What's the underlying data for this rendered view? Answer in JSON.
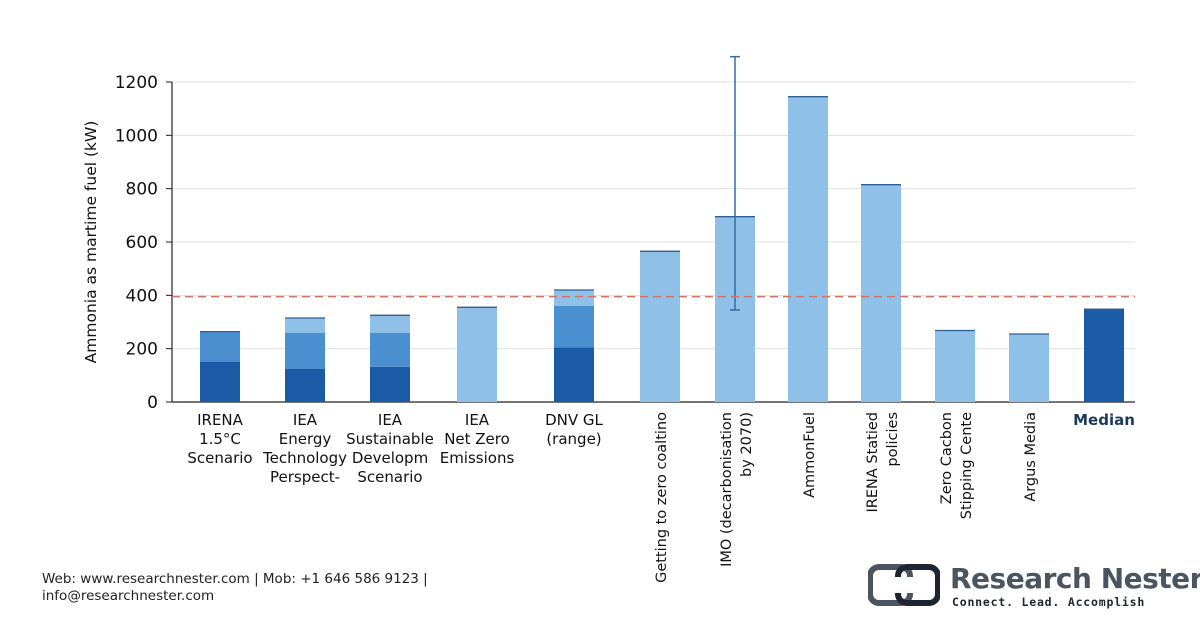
{
  "chart_data": {
    "type": "bar",
    "ylabel": "Ammonia as martime fuel (kW)",
    "ylim": [
      0,
      1200
    ],
    "yticks": [
      0,
      200,
      400,
      600,
      800,
      1000,
      1200
    ],
    "grid": true,
    "reference_line": 395,
    "categories": [
      {
        "label": [
          "IRENA",
          "1.5°C",
          "Scenario"
        ],
        "rotated": false
      },
      {
        "label": [
          "IEA",
          "Energy",
          "Technology",
          "Perspect-"
        ],
        "rotated": false
      },
      {
        "label": [
          "IEA",
          "Sustainable",
          "Developm",
          "Scenario"
        ],
        "rotated": false
      },
      {
        "label": [
          "IEA",
          "Net Zero",
          "Emissions"
        ],
        "rotated": false
      },
      {
        "label": [
          "DNV GL",
          "(range)"
        ],
        "rotated": false
      },
      {
        "label": [
          "Getting to zero coaltino"
        ],
        "rotated": true
      },
      {
        "label": [
          "IMO (decarbonisation",
          "by 2070)"
        ],
        "rotated": true
      },
      {
        "label": [
          "AmmonFuel"
        ],
        "rotated": true
      },
      {
        "label": [
          "IRENA Statied",
          "policies"
        ],
        "rotated": true
      },
      {
        "label": [
          "Zero Cacbon",
          "Stipping Cente"
        ],
        "rotated": true
      },
      {
        "label": [
          "Argus Media"
        ],
        "rotated": true
      },
      {
        "label": [
          "Median"
        ],
        "rotated": false,
        "bold": true
      }
    ],
    "bars": [
      {
        "segments": [
          {
            "value": 150,
            "color": "#1b5aa5"
          },
          {
            "value": 114,
            "color": "#4a8fd0"
          }
        ]
      },
      {
        "segments": [
          {
            "value": 125,
            "color": "#1b5aa5"
          },
          {
            "value": 135,
            "color": "#4a8fd0"
          },
          {
            "value": 55,
            "color": "#8ec0e8"
          }
        ]
      },
      {
        "segments": [
          {
            "value": 132,
            "color": "#1b5aa5"
          },
          {
            "value": 128,
            "color": "#4a8fd0"
          },
          {
            "value": 65,
            "color": "#8ec0e8"
          }
        ]
      },
      {
        "segments": [
          {
            "value": 355,
            "color": "#8ec0e8"
          }
        ]
      },
      {
        "segments": [
          {
            "value": 205,
            "color": "#1b5aa5"
          },
          {
            "value": 155,
            "color": "#4a8fd0"
          },
          {
            "value": 60,
            "color": "#8ec0e8"
          }
        ]
      },
      {
        "segments": [
          {
            "value": 565,
            "color": "#8ec0e8"
          }
        ]
      },
      {
        "segments": [
          {
            "value": 695,
            "color": "#8ec0e8"
          }
        ],
        "error": [
          345,
          1295
        ]
      },
      {
        "segments": [
          {
            "value": 1145,
            "color": "#8ec0e8"
          }
        ]
      },
      {
        "segments": [
          {
            "value": 815,
            "color": "#8ec0e8"
          }
        ]
      },
      {
        "segments": [
          {
            "value": 268,
            "color": "#8ec0e8"
          }
        ]
      },
      {
        "segments": [
          {
            "value": 255,
            "color": "#8ec0e8"
          }
        ]
      },
      {
        "segments": [
          {
            "value": 348,
            "color": "#1b5aa5"
          }
        ]
      }
    ],
    "colors": {
      "dark": "#1b5aa5",
      "mid": "#4a8fd0",
      "light": "#8ec0e8",
      "reference": "#d9705f",
      "grid": "#e1e1e1",
      "error_bar": "#2f6ea6"
    }
  },
  "footer": {
    "line1": "Web: www.researchnester.com | Mob: +1 646 586 9123 |",
    "line2": "info@researchnester.com"
  },
  "logo": {
    "name": "Research Nester",
    "tagline": "Connect. Lead. Accomplish"
  }
}
